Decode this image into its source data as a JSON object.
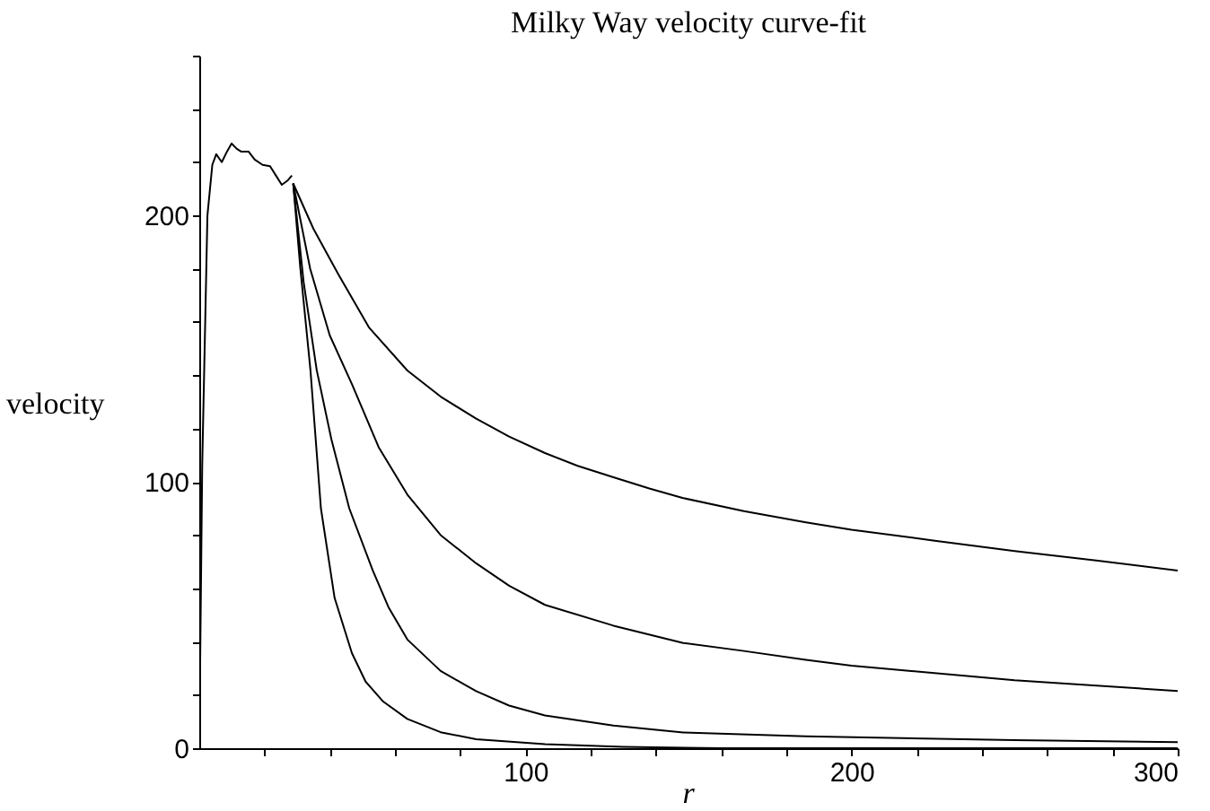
{
  "chart_data": {
    "type": "line",
    "title": "Milky Way velocity curve-fit",
    "xlabel": "r",
    "ylabel": "velocity",
    "xlim": [
      0,
      300
    ],
    "ylim": [
      0,
      260
    ],
    "xticks": [
      {
        "value": 20,
        "label": null
      },
      {
        "value": 40,
        "label": null
      },
      {
        "value": 60,
        "label": null
      },
      {
        "value": 80,
        "label": null
      },
      100,
      {
        "value": 120,
        "label": null
      },
      {
        "value": 140,
        "label": null
      },
      {
        "value": 160,
        "label": null
      },
      {
        "value": 180,
        "label": null
      },
      200,
      {
        "value": 220,
        "label": null
      },
      {
        "value": 240,
        "label": null
      },
      {
        "value": 260,
        "label": null
      },
      {
        "value": 280,
        "label": null
      },
      300
    ],
    "yticks": [
      0,
      {
        "value": 20,
        "label": null
      },
      {
        "value": 40,
        "label": null
      },
      {
        "value": 60,
        "label": null
      },
      {
        "value": 80,
        "label": null
      },
      100,
      {
        "value": 120,
        "label": null
      },
      {
        "value": 140,
        "label": null
      },
      {
        "value": 160,
        "label": null
      },
      {
        "value": 180,
        "label": null
      },
      200,
      {
        "value": 220,
        "label": null
      },
      {
        "value": 240,
        "label": null
      },
      {
        "value": 260,
        "label": null
      }
    ],
    "series": [
      {
        "color": "#000000",
        "x": [
          0,
          0.9,
          2.5,
          4,
          5.2,
          6.9,
          8.5,
          9.9,
          11.5,
          12.8,
          15.1,
          17,
          19.4,
          21.7,
          23.5,
          25.3,
          27,
          28.4
        ],
        "values": [
          0,
          106,
          200,
          219,
          223,
          220,
          224,
          227,
          225,
          224,
          224,
          221,
          219,
          218.5,
          215,
          211.5,
          213,
          215
        ]
      },
      {
        "color": "#000000",
        "x": [
          28.8,
          35,
          42.6,
          52,
          63.8,
          74,
          84.9,
          95,
          106,
          116,
          127,
          138,
          148.4,
          167,
          186,
          200,
          225,
          250,
          275,
          300
        ],
        "values": [
          212,
          195,
          178,
          158,
          141.8,
          132,
          123.7,
          117,
          110.8,
          106,
          101.7,
          97.5,
          93.9,
          89,
          84.8,
          82,
          78,
          74,
          70.5,
          66.7
        ]
      },
      {
        "color": "#000000",
        "x": [
          28.8,
          34,
          40,
          46.8,
          55,
          63.8,
          74,
          84.9,
          95,
          106,
          127,
          148.4,
          167,
          186,
          200,
          250,
          300
        ],
        "values": [
          212,
          180,
          155,
          136.7,
          113,
          95.2,
          80,
          69.4,
          61,
          53.8,
          46,
          39.5,
          36.5,
          33.2,
          31,
          25.5,
          21.5
        ]
      },
      {
        "color": "#000000",
        "x": [
          28.8,
          32,
          36,
          40.5,
          46,
          53.2,
          58,
          63.8,
          74,
          84.9,
          95,
          106,
          127,
          148.4,
          186,
          250,
          300
        ],
        "values": [
          212,
          175,
          142,
          116,
          90,
          66.7,
          53,
          40.8,
          29,
          21.4,
          16,
          12.3,
          8.5,
          5.9,
          4.5,
          3,
          2.3
        ]
      },
      {
        "color": "#000000",
        "x": [
          28.8,
          31,
          34.1,
          37.3,
          41.5,
          46.8,
          51,
          56.4,
          63.8,
          74,
          84.9,
          106,
          130,
          160,
          200,
          300
        ],
        "values": [
          212,
          180,
          141.8,
          90,
          56.4,
          35.7,
          25,
          17.5,
          11,
          6,
          3.4,
          1.5,
          0.5,
          0,
          0,
          0
        ]
      }
    ]
  }
}
